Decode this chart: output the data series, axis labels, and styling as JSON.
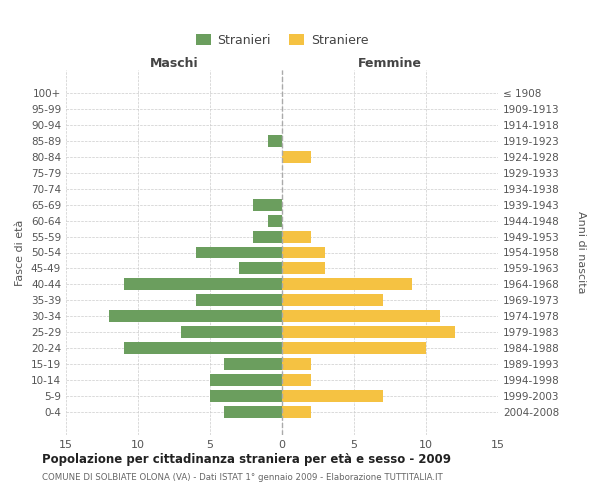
{
  "age_groups": [
    "100+",
    "95-99",
    "90-94",
    "85-89",
    "80-84",
    "75-79",
    "70-74",
    "65-69",
    "60-64",
    "55-59",
    "50-54",
    "45-49",
    "40-44",
    "35-39",
    "30-34",
    "25-29",
    "20-24",
    "15-19",
    "10-14",
    "5-9",
    "0-4"
  ],
  "birth_years": [
    "≤ 1908",
    "1909-1913",
    "1914-1918",
    "1919-1923",
    "1924-1928",
    "1929-1933",
    "1934-1938",
    "1939-1943",
    "1944-1948",
    "1949-1953",
    "1954-1958",
    "1959-1963",
    "1964-1968",
    "1969-1973",
    "1974-1978",
    "1979-1983",
    "1984-1988",
    "1989-1993",
    "1994-1998",
    "1999-2003",
    "2004-2008"
  ],
  "males": [
    0,
    0,
    0,
    1,
    0,
    0,
    0,
    2,
    1,
    2,
    6,
    3,
    11,
    6,
    12,
    7,
    11,
    4,
    5,
    5,
    4
  ],
  "females": [
    0,
    0,
    0,
    0,
    2,
    0,
    0,
    0,
    0,
    2,
    3,
    3,
    9,
    7,
    11,
    12,
    10,
    2,
    2,
    7,
    2
  ],
  "male_color": "#6b9e5e",
  "female_color": "#f5c242",
  "title": "Popolazione per cittadinanza straniera per età e sesso - 2009",
  "subtitle": "COMUNE DI SOLBIATE OLONA (VA) - Dati ISTAT 1° gennaio 2009 - Elaborazione TUTTITALIA.IT",
  "xlabel_left": "Maschi",
  "xlabel_right": "Femmine",
  "ylabel_left": "Fasce di età",
  "ylabel_right": "Anni di nascita",
  "legend_male": "Stranieri",
  "legend_female": "Straniere",
  "xlim": 15,
  "background_color": "#ffffff",
  "grid_color": "#cccccc",
  "bar_height": 0.75
}
